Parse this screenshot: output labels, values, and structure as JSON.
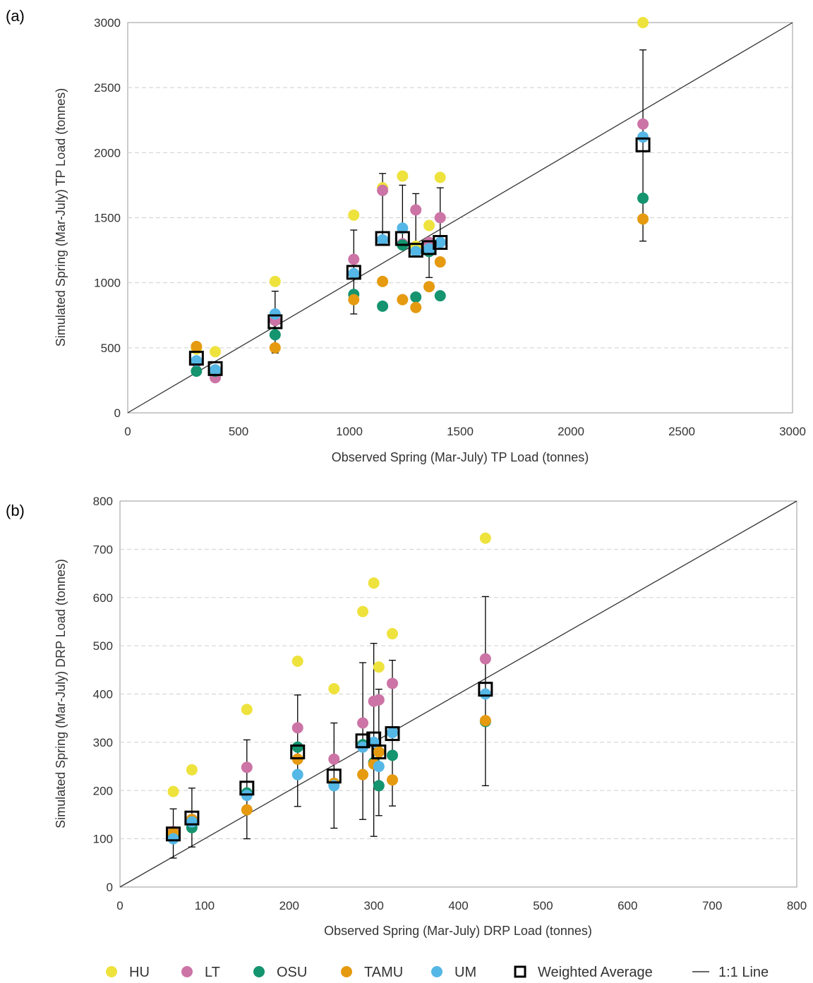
{
  "colors": {
    "HU": "#EEE23D",
    "LT": "#CC74A6",
    "OSU": "#14946F",
    "TAMU": "#E59A10",
    "UM": "#55B7E6",
    "weighted": "#000000",
    "line": "#333333",
    "grid": "#cfcfcf"
  },
  "legend": {
    "items": [
      {
        "key": "HU",
        "label": "HU",
        "kind": "dot"
      },
      {
        "key": "LT",
        "label": "LT",
        "kind": "dot"
      },
      {
        "key": "OSU",
        "label": "OSU",
        "kind": "dot"
      },
      {
        "key": "TAMU",
        "label": "TAMU",
        "kind": "dot"
      },
      {
        "key": "UM",
        "label": "UM",
        "kind": "dot"
      },
      {
        "key": "weighted",
        "label": "Weighted Average",
        "kind": "square"
      },
      {
        "key": "line",
        "label": "1:1 Line",
        "kind": "line"
      }
    ]
  },
  "chart_data": [
    {
      "type": "scatter",
      "panel_label": "(a)",
      "xlabel": "Observed  Spring  (Mar-July)  TP Load  (tonnes)",
      "ylabel": "Simulated Spring  (Mar-July)  TP Load  (tonnes)",
      "xlim": [
        0,
        3000
      ],
      "ylim": [
        0,
        3000
      ],
      "xticks": [
        0,
        500,
        1000,
        1500,
        2000,
        2500,
        3000
      ],
      "yticks": [
        0,
        500,
        1000,
        1500,
        2000,
        2500,
        3000
      ],
      "grid": "horizontal dashed",
      "reference_line": "1:1",
      "series": [
        {
          "name": "HU",
          "points": [
            [
              310,
              490
            ],
            [
              395,
              470
            ],
            [
              665,
              1010
            ],
            [
              1020,
              1520
            ],
            [
              1150,
              1730
            ],
            [
              1240,
              1820
            ],
            [
              1300,
              1280
            ],
            [
              1360,
              1440
            ],
            [
              1410,
              1810
            ],
            [
              2325,
              3000
            ]
          ]
        },
        {
          "name": "LT",
          "points": [
            [
              310,
              390
            ],
            [
              395,
              270
            ],
            [
              665,
              710
            ],
            [
              1020,
              1180
            ],
            [
              1150,
              1710
            ],
            [
              1240,
              1300
            ],
            [
              1300,
              1560
            ],
            [
              1360,
              1310
            ],
            [
              1410,
              1500
            ],
            [
              2325,
              2220
            ]
          ]
        },
        {
          "name": "OSU",
          "points": [
            [
              310,
              320
            ],
            [
              395,
              320
            ],
            [
              665,
              600
            ],
            [
              1020,
              910
            ],
            [
              1150,
              820
            ],
            [
              1240,
              1290
            ],
            [
              1300,
              890
            ],
            [
              1360,
              1240
            ],
            [
              1410,
              900
            ],
            [
              2325,
              1650
            ]
          ]
        },
        {
          "name": "TAMU",
          "points": [
            [
              310,
              510
            ],
            [
              395,
              330
            ],
            [
              665,
              500
            ],
            [
              1020,
              870
            ],
            [
              1150,
              1010
            ],
            [
              1240,
              870
            ],
            [
              1300,
              810
            ],
            [
              1360,
              970
            ],
            [
              1410,
              1160
            ],
            [
              2325,
              1490
            ]
          ]
        },
        {
          "name": "UM",
          "points": [
            [
              310,
              400
            ],
            [
              395,
              330
            ],
            [
              665,
              760
            ],
            [
              1020,
              1070
            ],
            [
              1150,
              1330
            ],
            [
              1240,
              1420
            ],
            [
              1300,
              1240
            ],
            [
              1360,
              1260
            ],
            [
              1410,
              1310
            ],
            [
              2325,
              2120
            ]
          ]
        },
        {
          "name": "Weighted Average",
          "points": [
            [
              310,
              420
            ],
            [
              395,
              340
            ],
            [
              665,
              700
            ],
            [
              1020,
              1080
            ],
            [
              1150,
              1340
            ],
            [
              1240,
              1340
            ],
            [
              1300,
              1250
            ],
            [
              1360,
              1270
            ],
            [
              1410,
              1310
            ],
            [
              2325,
              2060
            ]
          ],
          "error_low": [
            null,
            null,
            460,
            760,
            null,
            null,
            null,
            1040,
            null,
            1320
          ],
          "error_high": [
            null,
            null,
            935,
            1405,
            1840,
            1750,
            1685,
            null,
            1730,
            2790
          ]
        }
      ]
    },
    {
      "type": "scatter",
      "panel_label": "(b)",
      "xlabel": "Observed  Spring  (Mar-July)  DRP Load  (tonnes)",
      "ylabel": "Simulated Spring  (Mar-July)  DRP Load  (tonnes)",
      "xlim": [
        0,
        800
      ],
      "ylim": [
        0,
        800
      ],
      "xticks": [
        0,
        100,
        200,
        300,
        400,
        500,
        600,
        700,
        800
      ],
      "yticks": [
        0,
        100,
        200,
        300,
        400,
        500,
        600,
        700,
        800
      ],
      "grid": "horizontal dashed",
      "reference_line": "1:1",
      "series": [
        {
          "name": "HU",
          "points": [
            [
              63,
              198
            ],
            [
              85,
              243
            ],
            [
              150,
              368
            ],
            [
              210,
              468
            ],
            [
              253,
              411
            ],
            [
              287,
              571
            ],
            [
              300,
              630
            ],
            [
              306,
              456
            ],
            [
              322,
              525
            ],
            [
              432,
              723
            ]
          ]
        },
        {
          "name": "LT",
          "points": [
            [
              63,
              115
            ],
            [
              85,
              140
            ],
            [
              150,
              248
            ],
            [
              210,
              330
            ],
            [
              253,
              265
            ],
            [
              287,
              340
            ],
            [
              300,
              385
            ],
            [
              306,
              388
            ],
            [
              322,
              422
            ],
            [
              432,
              473
            ]
          ]
        },
        {
          "name": "OSU",
          "points": [
            [
              63,
              105
            ],
            [
              85,
              123
            ],
            [
              150,
              195
            ],
            [
              210,
              290
            ],
            [
              253,
              215
            ],
            [
              287,
              295
            ],
            [
              300,
              258
            ],
            [
              306,
              210
            ],
            [
              322,
              273
            ],
            [
              432,
              343
            ]
          ]
        },
        {
          "name": "TAMU",
          "points": [
            [
              63,
              112
            ],
            [
              85,
              140
            ],
            [
              150,
              160
            ],
            [
              210,
              265
            ],
            [
              253,
              215
            ],
            [
              287,
              233
            ],
            [
              300,
              255
            ],
            [
              306,
              280
            ],
            [
              322,
              222
            ],
            [
              432,
              345
            ]
          ]
        },
        {
          "name": "UM",
          "points": [
            [
              63,
              100
            ],
            [
              85,
              135
            ],
            [
              150,
              190
            ],
            [
              210,
              233
            ],
            [
              253,
              210
            ],
            [
              287,
              290
            ],
            [
              300,
              300
            ],
            [
              306,
              250
            ],
            [
              322,
              320
            ],
            [
              432,
              400
            ]
          ]
        },
        {
          "name": "Weighted Average",
          "points": [
            [
              63,
              110
            ],
            [
              85,
              143
            ],
            [
              150,
              205
            ],
            [
              210,
              280
            ],
            [
              253,
              230
            ],
            [
              287,
              303
            ],
            [
              300,
              307
            ],
            [
              306,
              280
            ],
            [
              322,
              318
            ],
            [
              432,
              410
            ]
          ],
          "error_low": [
            60,
            83,
            100,
            167,
            122,
            140,
            105,
            148,
            168,
            210
          ],
          "error_high": [
            162,
            205,
            305,
            398,
            340,
            465,
            505,
            410,
            470,
            602
          ]
        }
      ]
    }
  ]
}
